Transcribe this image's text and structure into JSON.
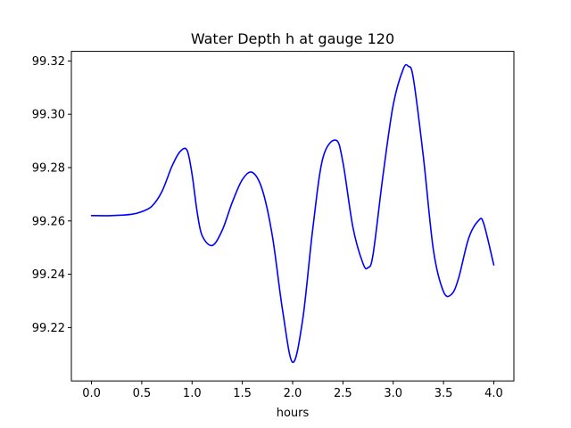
{
  "chart_data": {
    "type": "line",
    "title": "Water Depth h at gauge 120",
    "xlabel": "hours",
    "ylabel": "",
    "xlim": [
      -0.2,
      4.2
    ],
    "ylim": [
      99.2,
      99.3236
    ],
    "grid": false,
    "x_ticks": [
      0.0,
      0.5,
      1.0,
      1.5,
      2.0,
      2.5,
      3.0,
      3.5,
      4.0
    ],
    "x_tick_labels": [
      "0.0",
      "0.5",
      "1.0",
      "1.5",
      "2.0",
      "2.5",
      "3.0",
      "3.5",
      "4.0"
    ],
    "y_ticks": [
      99.22,
      99.24,
      99.26,
      99.28,
      99.3,
      99.32
    ],
    "y_tick_labels": [
      "99.22",
      "99.24",
      "99.26",
      "99.28",
      "99.30",
      "99.32"
    ],
    "series": [
      {
        "color": "#0000ff",
        "x": [
          0.0,
          0.2,
          0.4,
          0.5,
          0.6,
          0.7,
          0.8,
          0.88,
          0.95,
          1.0,
          1.05,
          1.1,
          1.2,
          1.3,
          1.4,
          1.5,
          1.6,
          1.7,
          1.8,
          1.9,
          2.0,
          2.1,
          2.2,
          2.3,
          2.43,
          2.5,
          2.6,
          2.7,
          2.75,
          2.8,
          2.9,
          3.0,
          3.1,
          3.15,
          3.2,
          3.3,
          3.4,
          3.5,
          3.58,
          3.65,
          3.75,
          3.85,
          3.9,
          4.0
        ],
        "y": [
          99.262,
          99.262,
          99.2625,
          99.2635,
          99.2655,
          99.271,
          99.2805,
          99.286,
          99.2865,
          99.2775,
          99.2635,
          99.2545,
          99.2508,
          99.2565,
          99.267,
          99.2755,
          99.2782,
          99.2715,
          99.254,
          99.2265,
          99.207,
          99.223,
          99.257,
          99.2835,
          99.2903,
          99.282,
          99.2575,
          99.244,
          99.2425,
          99.2475,
          99.2775,
          99.3035,
          99.317,
          99.318,
          99.3135,
          99.284,
          99.249,
          99.2335,
          99.2325,
          99.2385,
          99.2535,
          99.2602,
          99.259,
          99.2435
        ]
      }
    ]
  }
}
